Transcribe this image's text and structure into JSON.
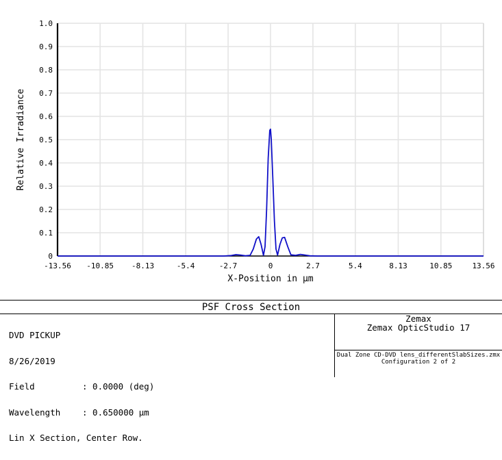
{
  "chart_data": {
    "type": "line",
    "title": "",
    "xlabel": "X-Position in µm",
    "ylabel": "Relative Irradiance",
    "xlim": [
      -13.56,
      13.56
    ],
    "ylim": [
      0,
      1.0
    ],
    "x_ticks": [
      -13.56,
      -10.85,
      -8.13,
      -5.4,
      -2.7,
      0,
      2.7,
      5.4,
      8.13,
      10.85,
      13.56
    ],
    "x_tick_labels": [
      "-13.56",
      "-10.85",
      "-8.13",
      "-5.4",
      "-2.7",
      "0",
      "2.7",
      "5.4",
      "8.13",
      "10.85",
      "13.56"
    ],
    "y_ticks": [
      0,
      0.1,
      0.2,
      0.3,
      0.4,
      0.5,
      0.6,
      0.7,
      0.8,
      0.9,
      1.0
    ],
    "y_tick_labels": [
      "0",
      "0.1",
      "0.2",
      "0.3",
      "0.4",
      "0.5",
      "0.6",
      "0.7",
      "0.8",
      "0.9",
      "1.0"
    ],
    "grid": true,
    "series_color": "#1010c8",
    "series": [
      {
        "x": [
          -13.56,
          -6.0,
          -3.0,
          -2.5,
          -2.2,
          -1.9,
          -1.6,
          -1.3,
          -1.1,
          -0.9,
          -0.75,
          -0.6,
          -0.45,
          -0.35,
          -0.25,
          -0.15,
          -0.05,
          0,
          0.05,
          0.15,
          0.25,
          0.35,
          0.45,
          0.6,
          0.75,
          0.9,
          1.1,
          1.3,
          1.6,
          1.9,
          2.2,
          2.5,
          3.0,
          6.0,
          13.56
        ],
        "y": [
          0,
          0,
          0,
          0.002,
          0.006,
          0.004,
          0.001,
          0.003,
          0.03,
          0.073,
          0.083,
          0.05,
          0.003,
          0.04,
          0.2,
          0.42,
          0.54,
          0.545,
          0.5,
          0.33,
          0.15,
          0.03,
          0.004,
          0.05,
          0.078,
          0.08,
          0.04,
          0.005,
          0.003,
          0.007,
          0.004,
          0.001,
          0,
          0,
          0
        ]
      }
    ]
  },
  "footer": {
    "title": "PSF Cross Section",
    "system": "DVD PICKUP",
    "date": "8/26/2019",
    "field_label": "Field",
    "field_value": ": 0.0000 (deg)",
    "wavelength_label": "Wavelength",
    "wavelength_value": ": 0.650000 µm",
    "section": "Lin X Section, Center Row.",
    "company": "Zemax",
    "product": "Zemax OpticStudio 17",
    "file": "Dual Zone CD-DVD lens_differentSlabSizes.zmx",
    "configuration": "Configuration 2 of 2"
  }
}
